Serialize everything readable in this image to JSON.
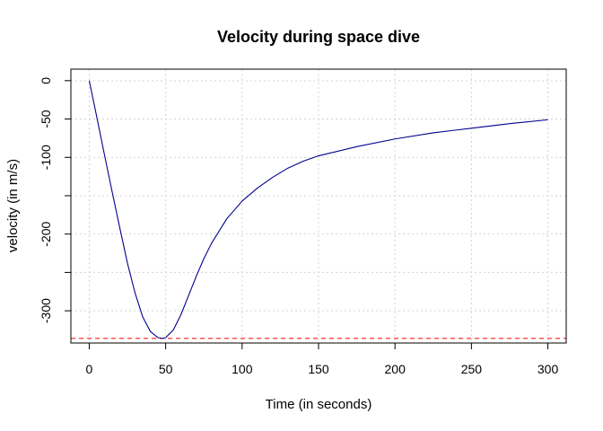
{
  "chart_data": {
    "type": "line",
    "title": "Velocity during space dive",
    "xlabel": "Time (in seconds)",
    "ylabel": "velocity (in m/s)",
    "xlim": [
      -12,
      312
    ],
    "ylim": [
      -342,
      15
    ],
    "x_ticks": [
      0,
      50,
      100,
      150,
      200,
      250,
      300
    ],
    "x_tick_labels": [
      "0",
      "50",
      "100",
      "150",
      "200",
      "250",
      "300"
    ],
    "y_ticks": [
      0,
      -50,
      -100,
      -200,
      -300
    ],
    "y_tick_labels": [
      "0",
      "-50",
      "-100",
      "-200",
      "-300"
    ],
    "grid_x": [
      0,
      50,
      100,
      150,
      200,
      250,
      300
    ],
    "grid_y": [
      0,
      -50,
      -100,
      -150,
      -200,
      -250,
      -300
    ],
    "grid": true,
    "series": [
      {
        "color": "#00008B",
        "x": [
          0,
          5,
          10,
          15,
          20,
          25,
          30,
          35,
          40,
          45,
          48,
          50,
          55,
          60,
          65,
          70,
          75,
          80,
          90,
          100,
          110,
          120,
          130,
          140,
          150,
          175,
          200,
          225,
          250,
          275,
          300
        ],
        "y": [
          0,
          -48,
          -97,
          -145,
          -192,
          -238,
          -277,
          -308,
          -327,
          -335,
          -336,
          -335,
          -325,
          -305,
          -280,
          -255,
          -232,
          -212,
          -180,
          -157,
          -140,
          -126,
          -114,
          -105,
          -98,
          -86,
          -76,
          -68,
          -62,
          -56,
          -51
        ]
      }
    ],
    "hline": {
      "y": -336,
      "color": "#FF0000",
      "style": "dashed"
    }
  }
}
